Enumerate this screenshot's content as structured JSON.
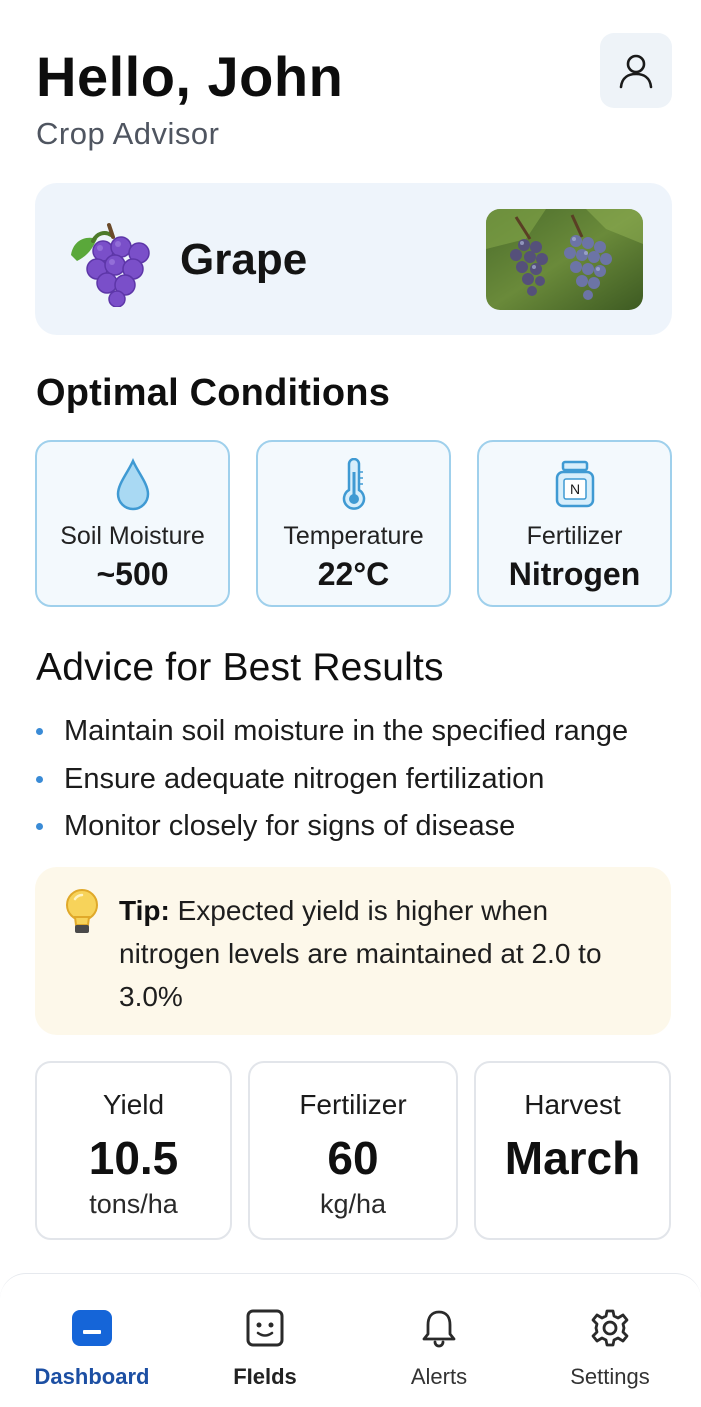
{
  "header": {
    "greeting": "Hello, John",
    "subtitle": "Crop Advisor",
    "profile_icon": "user-icon"
  },
  "crop": {
    "name": "Grape",
    "icon": "grape-icon",
    "photo": "grape-cluster-photo"
  },
  "optimal": {
    "title": "Optimal Conditions",
    "items": [
      {
        "icon": "water-drop-icon",
        "label": "Soil Moisture",
        "value": "~500"
      },
      {
        "icon": "thermometer-icon",
        "label": "Temperature",
        "value": "22°C"
      },
      {
        "icon": "fertilizer-jar-icon",
        "label": "Fertilizer",
        "value": "Nitrogen",
        "icon_letter": "N"
      }
    ]
  },
  "advice": {
    "title": "Advice for Best Results",
    "items": [
      "Maintain soil moisture in the specified range",
      "Ensure adequate nitrogen fertilization",
      "Monitor closely for signs of disease"
    ]
  },
  "tip": {
    "label": "Tip:",
    "text": " Expected yield is higher when nitrogen levels are maintained at 2.0 to 3.0%",
    "icon": "lightbulb-icon"
  },
  "stats": [
    {
      "label": "Yield",
      "value": "10.5",
      "unit": "tons/ha"
    },
    {
      "label": "Fertilizer",
      "value": "60",
      "unit": "kg/ha"
    },
    {
      "label": "Harvest",
      "value": "March",
      "unit": ""
    }
  ],
  "nav": {
    "items": [
      {
        "label": "Dashboard",
        "icon": "dashboard-icon",
        "active": true
      },
      {
        "label": "FIelds",
        "icon": "fields-icon",
        "active": false
      },
      {
        "label": "Alerts",
        "icon": "bell-icon",
        "active": false
      },
      {
        "label": "Settings",
        "icon": "gear-icon",
        "active": false
      }
    ]
  },
  "colors": {
    "accent": "#1c4fa3",
    "card_border": "#9fd0ec",
    "tip_bg": "#fdf8ea",
    "bullet": "#3a8bd6"
  }
}
